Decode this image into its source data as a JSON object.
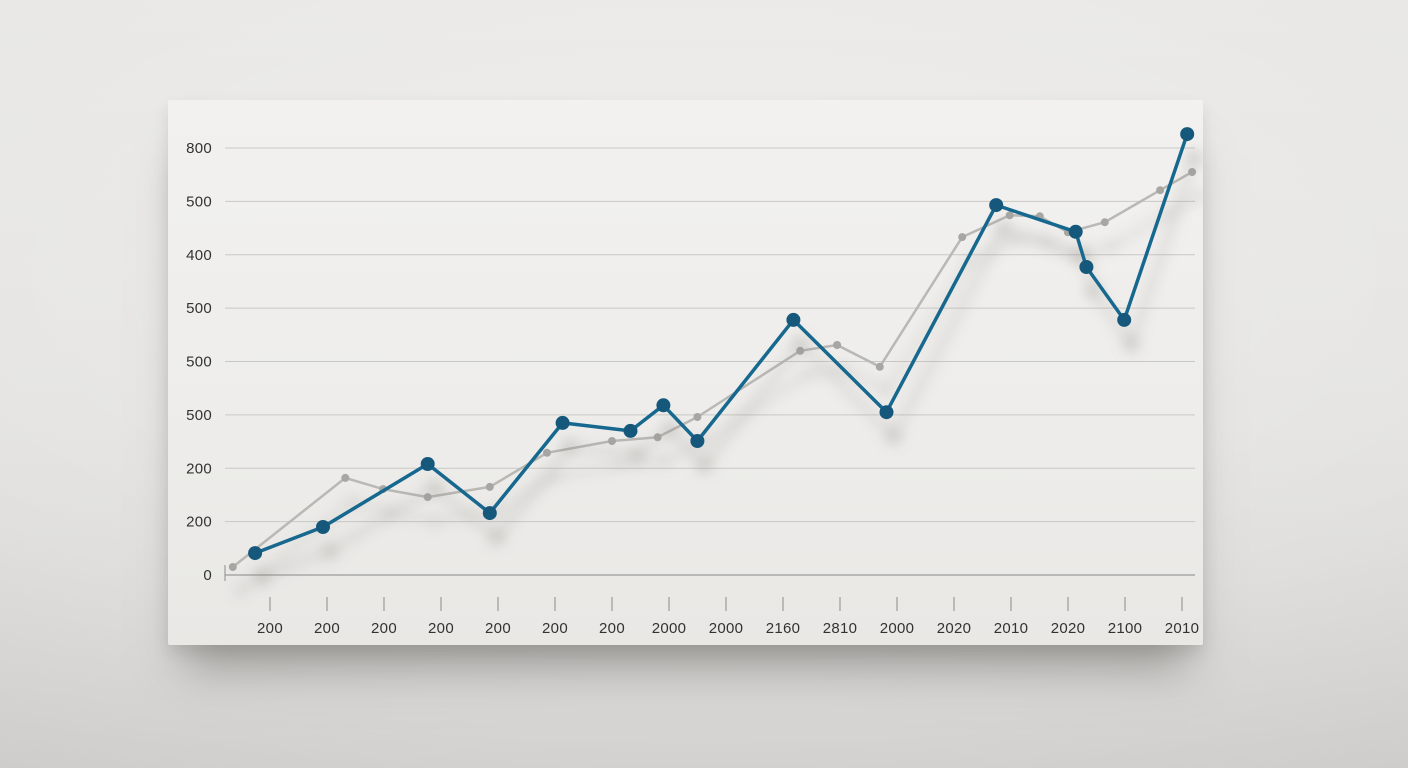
{
  "page": {
    "background_color": "#e4e3e1",
    "card_background_color": "#efeeec"
  },
  "chart_data": {
    "type": "line",
    "title": "",
    "xlabel": "",
    "ylabel": "",
    "grid": true,
    "legend_position": "none",
    "ylim": [
      0,
      800
    ],
    "y_tick_labels": [
      "800",
      "500",
      "400",
      "500",
      "500",
      "500",
      "200",
      "200",
      "0"
    ],
    "x_tick_labels": [
      "200",
      "200",
      "200",
      "200",
      "200",
      "200",
      "200",
      "2000",
      "2000",
      "2160",
      "2810",
      "2000",
      "2020",
      "2010",
      "2020",
      "2100",
      "2010"
    ],
    "colors": {
      "gridline": "#c9c8c5",
      "axis_line": "#a9a8a5",
      "tick_mark": "#9b9a97",
      "tick_text": "#32322f",
      "shadow": "#86857f"
    },
    "series": [
      {
        "name": "primary-series",
        "color": "#19678e",
        "marker_color": "#15597c",
        "line_width": 3.5,
        "marker_radius": 7,
        "points": [
          [
            0.031,
            41
          ],
          [
            0.101,
            90
          ],
          [
            0.209,
            208
          ],
          [
            0.273,
            116
          ],
          [
            0.348,
            285
          ],
          [
            0.418,
            270
          ],
          [
            0.452,
            318
          ],
          [
            0.487,
            251
          ],
          [
            0.586,
            478
          ],
          [
            0.682,
            305
          ],
          [
            0.795,
            693
          ],
          [
            0.877,
            643
          ],
          [
            0.888,
            577
          ],
          [
            0.927,
            478
          ],
          [
            0.992,
            826
          ]
        ]
      },
      {
        "name": "secondary-series",
        "color": "#b9b8b5",
        "marker_color": "#a7a6a3",
        "line_width": 2.5,
        "marker_radius": 4,
        "points": [
          [
            0.008,
            15
          ],
          [
            0.124,
            182
          ],
          [
            0.163,
            161
          ],
          [
            0.209,
            146
          ],
          [
            0.273,
            165
          ],
          [
            0.332,
            229
          ],
          [
            0.399,
            251
          ],
          [
            0.446,
            258
          ],
          [
            0.487,
            296
          ],
          [
            0.593,
            420
          ],
          [
            0.631,
            431
          ],
          [
            0.675,
            390
          ],
          [
            0.76,
            633
          ],
          [
            0.809,
            674
          ],
          [
            0.84,
            672
          ],
          [
            0.869,
            642
          ],
          [
            0.907,
            661
          ],
          [
            0.964,
            721
          ],
          [
            0.997,
            755
          ]
        ]
      }
    ]
  }
}
